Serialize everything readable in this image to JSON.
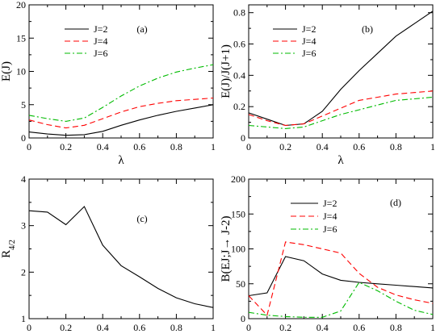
{
  "chart_data": [
    {
      "type": "line",
      "panel_label": "(a)",
      "xlabel": "λ",
      "ylabel": "E(J)",
      "xlim": [
        0,
        1
      ],
      "ylim": [
        0,
        20
      ],
      "xticks": [
        0,
        0.2,
        0.4,
        0.6,
        0.8,
        1
      ],
      "xtick_labels": [
        "0",
        "0.2",
        "0.4",
        "0.6",
        "0.8",
        "1"
      ],
      "yticks": [
        0,
        5,
        10,
        15,
        20
      ],
      "ytick_labels": [
        "0",
        "5",
        "10",
        "15",
        "20"
      ],
      "legend_position": "top-left",
      "series": [
        {
          "name": "J=2",
          "color": "#000000",
          "dash": "solid",
          "x": [
            0,
            0.1,
            0.2,
            0.3,
            0.4,
            0.5,
            0.6,
            0.7,
            0.8,
            0.9,
            1.0
          ],
          "y": [
            0.9,
            0.6,
            0.4,
            0.5,
            1.0,
            1.9,
            2.7,
            3.4,
            4.0,
            4.5,
            5.0
          ]
        },
        {
          "name": "J=4",
          "color": "#ff0000",
          "dash": "dashed",
          "x": [
            0,
            0.1,
            0.2,
            0.3,
            0.4,
            0.5,
            0.6,
            0.7,
            0.8,
            0.9,
            1.0
          ],
          "y": [
            2.7,
            2.0,
            1.5,
            1.9,
            2.9,
            3.9,
            4.7,
            5.2,
            5.6,
            5.8,
            6.0
          ]
        },
        {
          "name": "J=6",
          "color": "#00bb00",
          "dash": "dashdot",
          "x": [
            0,
            0.1,
            0.2,
            0.3,
            0.4,
            0.5,
            0.6,
            0.7,
            0.8,
            0.9,
            1.0
          ],
          "y": [
            3.4,
            2.9,
            2.5,
            3.0,
            4.6,
            6.3,
            7.8,
            9.0,
            9.9,
            10.5,
            11.0
          ]
        }
      ]
    },
    {
      "type": "line",
      "panel_label": "(b)",
      "xlabel": "λ",
      "ylabel": "E(J)/J(J+1)",
      "xlim": [
        0,
        1
      ],
      "ylim": [
        0,
        0.85
      ],
      "xticks": [
        0,
        0.2,
        0.4,
        0.6,
        0.8,
        1
      ],
      "xtick_labels": [
        "0",
        "0.2",
        "0.4",
        "0.6",
        "0.8",
        "1"
      ],
      "yticks": [
        0,
        0.2,
        0.4,
        0.6,
        0.8
      ],
      "ytick_labels": [
        "0",
        "0.2",
        "0.4",
        "0.6",
        "0.8"
      ],
      "legend_position": "top-left",
      "series": [
        {
          "name": "J=2",
          "color": "#000000",
          "dash": "solid",
          "x": [
            0,
            0.1,
            0.2,
            0.3,
            0.4,
            0.5,
            0.6,
            0.7,
            0.8,
            0.9,
            1.0
          ],
          "y": [
            0.16,
            0.12,
            0.08,
            0.09,
            0.17,
            0.31,
            0.43,
            0.54,
            0.65,
            0.73,
            0.81
          ]
        },
        {
          "name": "J=4",
          "color": "#ff0000",
          "dash": "dashed",
          "x": [
            0,
            0.1,
            0.2,
            0.3,
            0.4,
            0.5,
            0.6,
            0.7,
            0.8,
            0.9,
            1.0
          ],
          "y": [
            0.15,
            0.11,
            0.08,
            0.09,
            0.14,
            0.19,
            0.24,
            0.26,
            0.28,
            0.29,
            0.3
          ]
        },
        {
          "name": "J=6",
          "color": "#00bb00",
          "dash": "dashdot",
          "x": [
            0,
            0.1,
            0.2,
            0.3,
            0.4,
            0.5,
            0.6,
            0.7,
            0.8,
            0.9,
            1.0
          ],
          "y": [
            0.08,
            0.07,
            0.06,
            0.07,
            0.11,
            0.15,
            0.18,
            0.21,
            0.24,
            0.25,
            0.26
          ]
        }
      ]
    },
    {
      "type": "line",
      "panel_label": "(c)",
      "xlabel": "λ",
      "ylabel": "R",
      "ylabel_subscript": "4/2",
      "xlim": [
        0,
        1
      ],
      "ylim": [
        1,
        4
      ],
      "xticks": [
        0,
        0.2,
        0.4,
        0.6,
        0.8,
        1
      ],
      "xtick_labels": [
        "0",
        "0.2",
        "0.4",
        "0.6",
        "0.8",
        "1"
      ],
      "yticks": [
        1,
        2,
        3,
        4
      ],
      "ytick_labels": [
        "1",
        "2",
        "3",
        "4"
      ],
      "series": [
        {
          "name": "",
          "color": "#000000",
          "dash": "solid",
          "x": [
            0,
            0.1,
            0.2,
            0.3,
            0.4,
            0.5,
            0.6,
            0.7,
            0.8,
            0.9,
            1.0
          ],
          "y": [
            3.32,
            3.29,
            3.02,
            3.41,
            2.58,
            2.14,
            1.9,
            1.65,
            1.45,
            1.32,
            1.24
          ]
        }
      ]
    },
    {
      "type": "line",
      "panel_label": "(d)",
      "xlabel": "λ",
      "ylabel": "B(EJ;J→ J-2)",
      "xlim": [
        0,
        1
      ],
      "ylim": [
        0,
        200
      ],
      "xticks": [
        0,
        0.2,
        0.4,
        0.6,
        0.8,
        1
      ],
      "xtick_labels": [
        "0",
        "0.2",
        "0.4",
        "0.6",
        "0.8",
        "1"
      ],
      "yticks": [
        0,
        50,
        100,
        150,
        200
      ],
      "ytick_labels": [
        "0",
        "50",
        "100",
        "150",
        "200"
      ],
      "legend_position": "top-right",
      "series": [
        {
          "name": "J=2",
          "color": "#000000",
          "dash": "solid",
          "x": [
            0,
            0.1,
            0.2,
            0.3,
            0.4,
            0.5,
            0.6,
            0.7,
            0.8,
            0.9,
            1.0
          ],
          "y": [
            33,
            37,
            89,
            83,
            64,
            55,
            52,
            50,
            48,
            46,
            44
          ]
        },
        {
          "name": "J=4",
          "color": "#ff0000",
          "dash": "dashed",
          "x": [
            0,
            0.1,
            0.2,
            0.3,
            0.4,
            0.5,
            0.6,
            0.7,
            0.8,
            0.9,
            1.0
          ],
          "y": [
            33,
            5,
            110,
            106,
            100,
            94,
            65,
            45,
            34,
            27,
            22
          ]
        },
        {
          "name": "J=6",
          "color": "#00bb00",
          "dash": "dashdot",
          "x": [
            0,
            0.1,
            0.2,
            0.3,
            0.4,
            0.5,
            0.6,
            0.7,
            0.8,
            0.9,
            1.0
          ],
          "y": [
            9,
            5,
            3,
            2,
            2,
            11,
            52,
            40,
            25,
            12,
            6
          ]
        }
      ]
    }
  ]
}
